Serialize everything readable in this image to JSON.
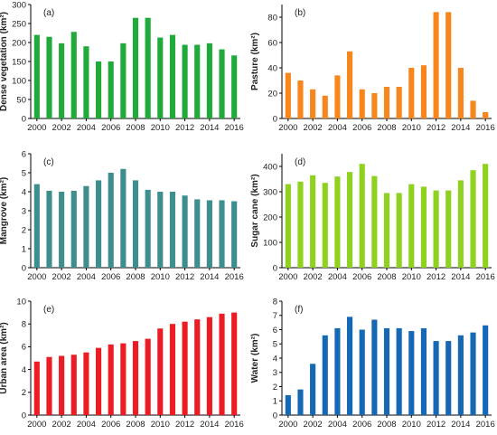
{
  "chart_data": [
    {
      "type": "bar",
      "panel_label": "(a)",
      "ylabel": "Dense vegetation (km²)",
      "color": "#1faa3a",
      "ylim": [
        0,
        300
      ],
      "yticks": [
        0,
        50,
        100,
        150,
        200,
        250,
        300
      ],
      "xticks": [
        "2000",
        "2002",
        "2004",
        "2006",
        "2008",
        "2010",
        "2012",
        "2014",
        "2016"
      ],
      "x": [
        2000,
        2001,
        2002,
        2003,
        2004,
        2005,
        2006,
        2007,
        2008,
        2009,
        2010,
        2011,
        2012,
        2013,
        2014,
        2015,
        2016
      ],
      "values": [
        220,
        215,
        198,
        228,
        190,
        150,
        150,
        198,
        265,
        265,
        213,
        220,
        194,
        194,
        198,
        182,
        166
      ]
    },
    {
      "type": "bar",
      "panel_label": "(b)",
      "ylabel": "Pasture (km²)",
      "color": "#f7861d",
      "ylim": [
        0,
        90
      ],
      "yticks": [
        0,
        20,
        40,
        60,
        80
      ],
      "xticks": [
        "2000",
        "2002",
        "2004",
        "2006",
        "2008",
        "2010",
        "2012",
        "2014",
        "2016"
      ],
      "x": [
        2000,
        2001,
        2002,
        2003,
        2004,
        2005,
        2006,
        2007,
        2008,
        2009,
        2010,
        2011,
        2012,
        2013,
        2014,
        2015,
        2016
      ],
      "values": [
        36,
        30,
        23,
        18,
        34,
        53,
        23,
        20,
        25,
        25,
        40,
        42,
        84,
        84,
        40,
        14,
        5
      ]
    },
    {
      "type": "bar",
      "panel_label": "(c)",
      "ylabel": "Mangrove (km²)",
      "color": "#3e8e8e",
      "ylim": [
        0,
        6
      ],
      "yticks": [
        0,
        1,
        2,
        3,
        4,
        5,
        6
      ],
      "xticks": [
        "2000",
        "2002",
        "2004",
        "2006",
        "2008",
        "2010",
        "2012",
        "2014",
        "2016"
      ],
      "x": [
        2000,
        2001,
        2002,
        2003,
        2004,
        2005,
        2006,
        2007,
        2008,
        2009,
        2010,
        2011,
        2012,
        2013,
        2014,
        2015,
        2016
      ],
      "values": [
        4.4,
        4.05,
        4.0,
        4.05,
        4.3,
        4.6,
        5.0,
        5.2,
        4.6,
        4.1,
        4.0,
        4.0,
        3.8,
        3.6,
        3.55,
        3.55,
        3.5
      ]
    },
    {
      "type": "bar",
      "panel_label": "(d)",
      "ylabel": "Sugar cane (km²)",
      "color": "#8fd11f",
      "ylim": [
        0,
        450
      ],
      "yticks": [
        0,
        100,
        200,
        300,
        400
      ],
      "xticks": [
        "2000",
        "2002",
        "2004",
        "2006",
        "2008",
        "2010",
        "2012",
        "2014",
        "2016"
      ],
      "x": [
        2000,
        2001,
        2002,
        2003,
        2004,
        2005,
        2006,
        2007,
        2008,
        2009,
        2010,
        2011,
        2012,
        2013,
        2014,
        2015,
        2016
      ],
      "values": [
        330,
        340,
        365,
        335,
        360,
        378,
        410,
        362,
        295,
        295,
        330,
        320,
        305,
        305,
        345,
        385,
        410
      ]
    },
    {
      "type": "bar",
      "panel_label": "(e)",
      "ylabel": "Urban area (km²)",
      "color": "#ec1c24",
      "ylim": [
        0,
        10
      ],
      "yticks": [
        0,
        2,
        4,
        6,
        8,
        10
      ],
      "xticks": [
        "2000",
        "2002",
        "2004",
        "2006",
        "2008",
        "2010",
        "2012",
        "2014",
        "2016"
      ],
      "x": [
        2000,
        2001,
        2002,
        2003,
        2004,
        2005,
        2006,
        2007,
        2008,
        2009,
        2010,
        2011,
        2012,
        2013,
        2014,
        2015,
        2016
      ],
      "values": [
        4.7,
        5.1,
        5.2,
        5.3,
        5.5,
        5.9,
        6.2,
        6.3,
        6.5,
        6.7,
        7.6,
        8.0,
        8.2,
        8.4,
        8.6,
        8.9,
        9.0
      ]
    },
    {
      "type": "bar",
      "panel_label": "(f)",
      "ylabel": "Water (km²)",
      "color": "#1468b4",
      "ylim": [
        0,
        8
      ],
      "yticks": [
        0,
        1,
        2,
        3,
        4,
        5,
        6,
        7,
        8
      ],
      "xticks": [
        "2000",
        "2002",
        "2004",
        "2006",
        "2008",
        "2010",
        "2012",
        "2014",
        "2016"
      ],
      "x": [
        2000,
        2001,
        2002,
        2003,
        2004,
        2005,
        2006,
        2007,
        2008,
        2009,
        2010,
        2011,
        2012,
        2013,
        2014,
        2015,
        2016
      ],
      "values": [
        1.4,
        1.8,
        3.6,
        5.6,
        6.1,
        6.9,
        6.0,
        6.7,
        6.1,
        6.1,
        5.9,
        6.1,
        5.2,
        5.2,
        5.6,
        5.8,
        6.3
      ]
    }
  ]
}
